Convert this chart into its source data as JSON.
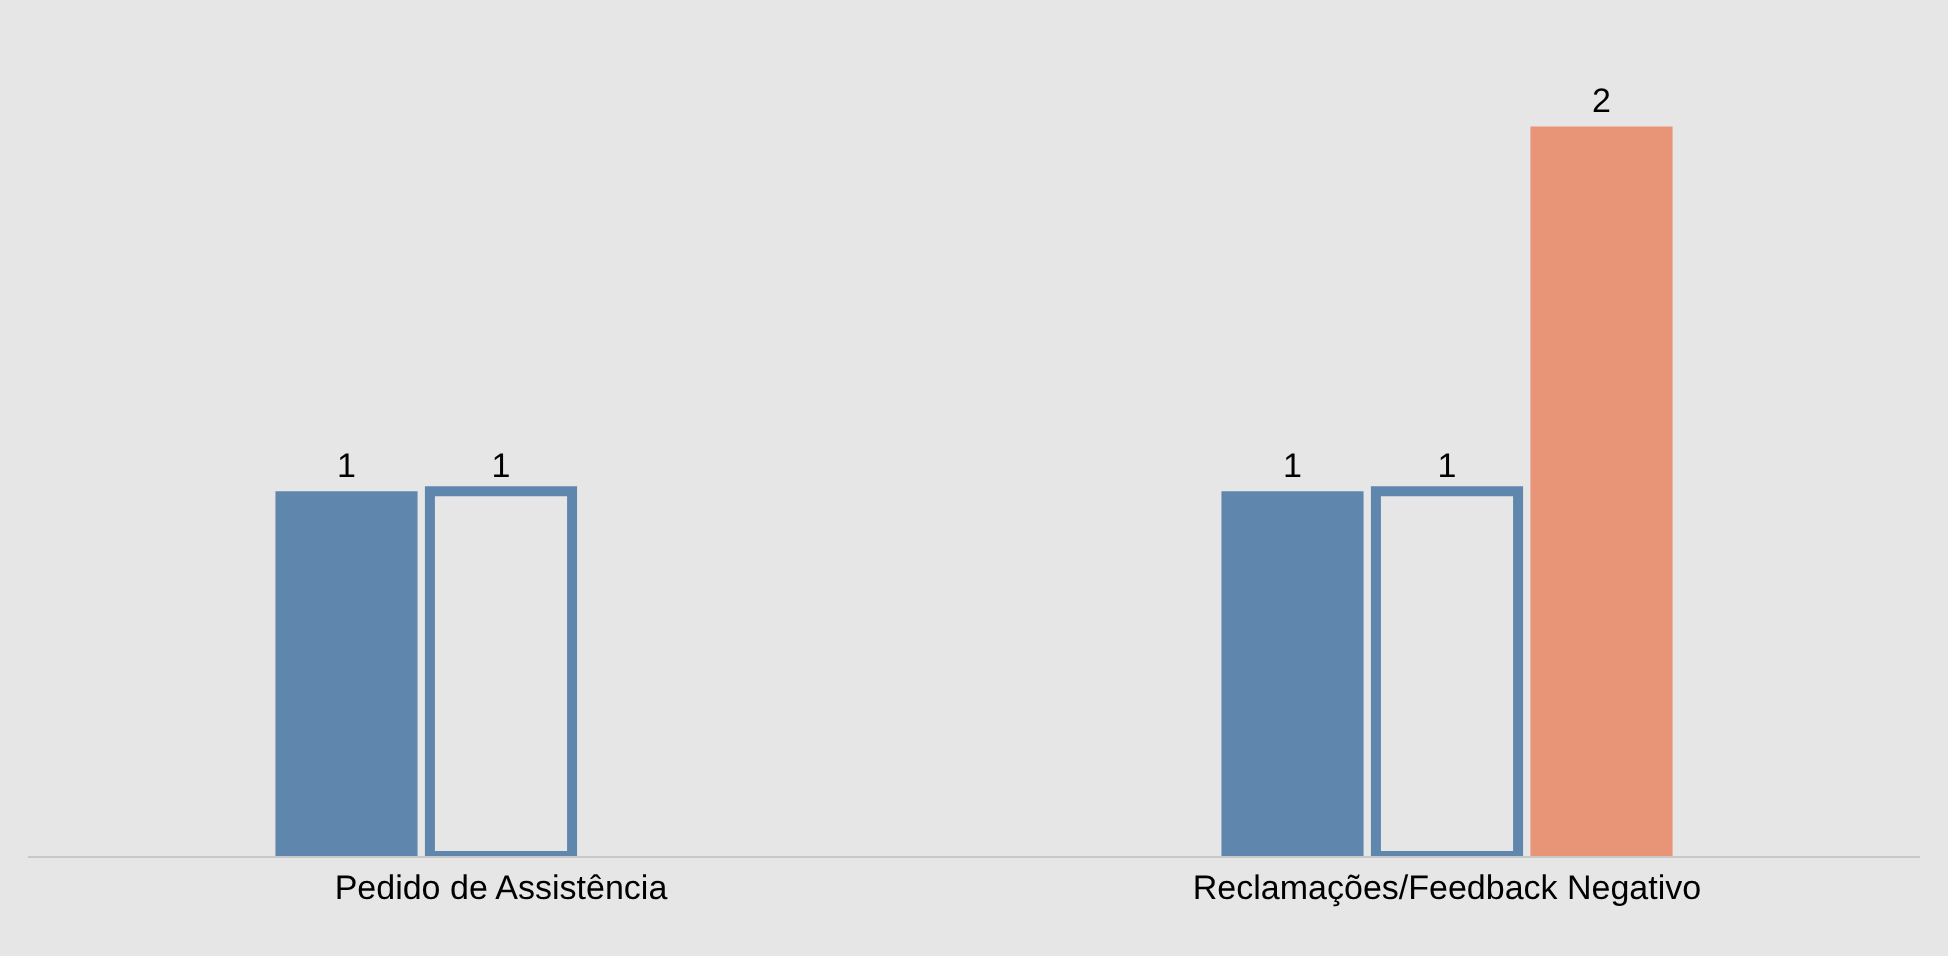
{
  "chart_data": {
    "type": "bar",
    "categories": [
      "Pedido de Assistência",
      "Reclamações/Feedback Negativo"
    ],
    "series": [
      {
        "color": "#5f87ae",
        "values": [
          1,
          1
        ]
      },
      {
        "color": "#5f87ae",
        "line_style": "solid",
        "values": [
          1,
          1
        ]
      },
      {
        "color": "#e89477",
        "values": [
          null,
          2
        ]
      }
    ],
    "data_labels": true,
    "grid": false,
    "tick_labels": "x"
  }
}
